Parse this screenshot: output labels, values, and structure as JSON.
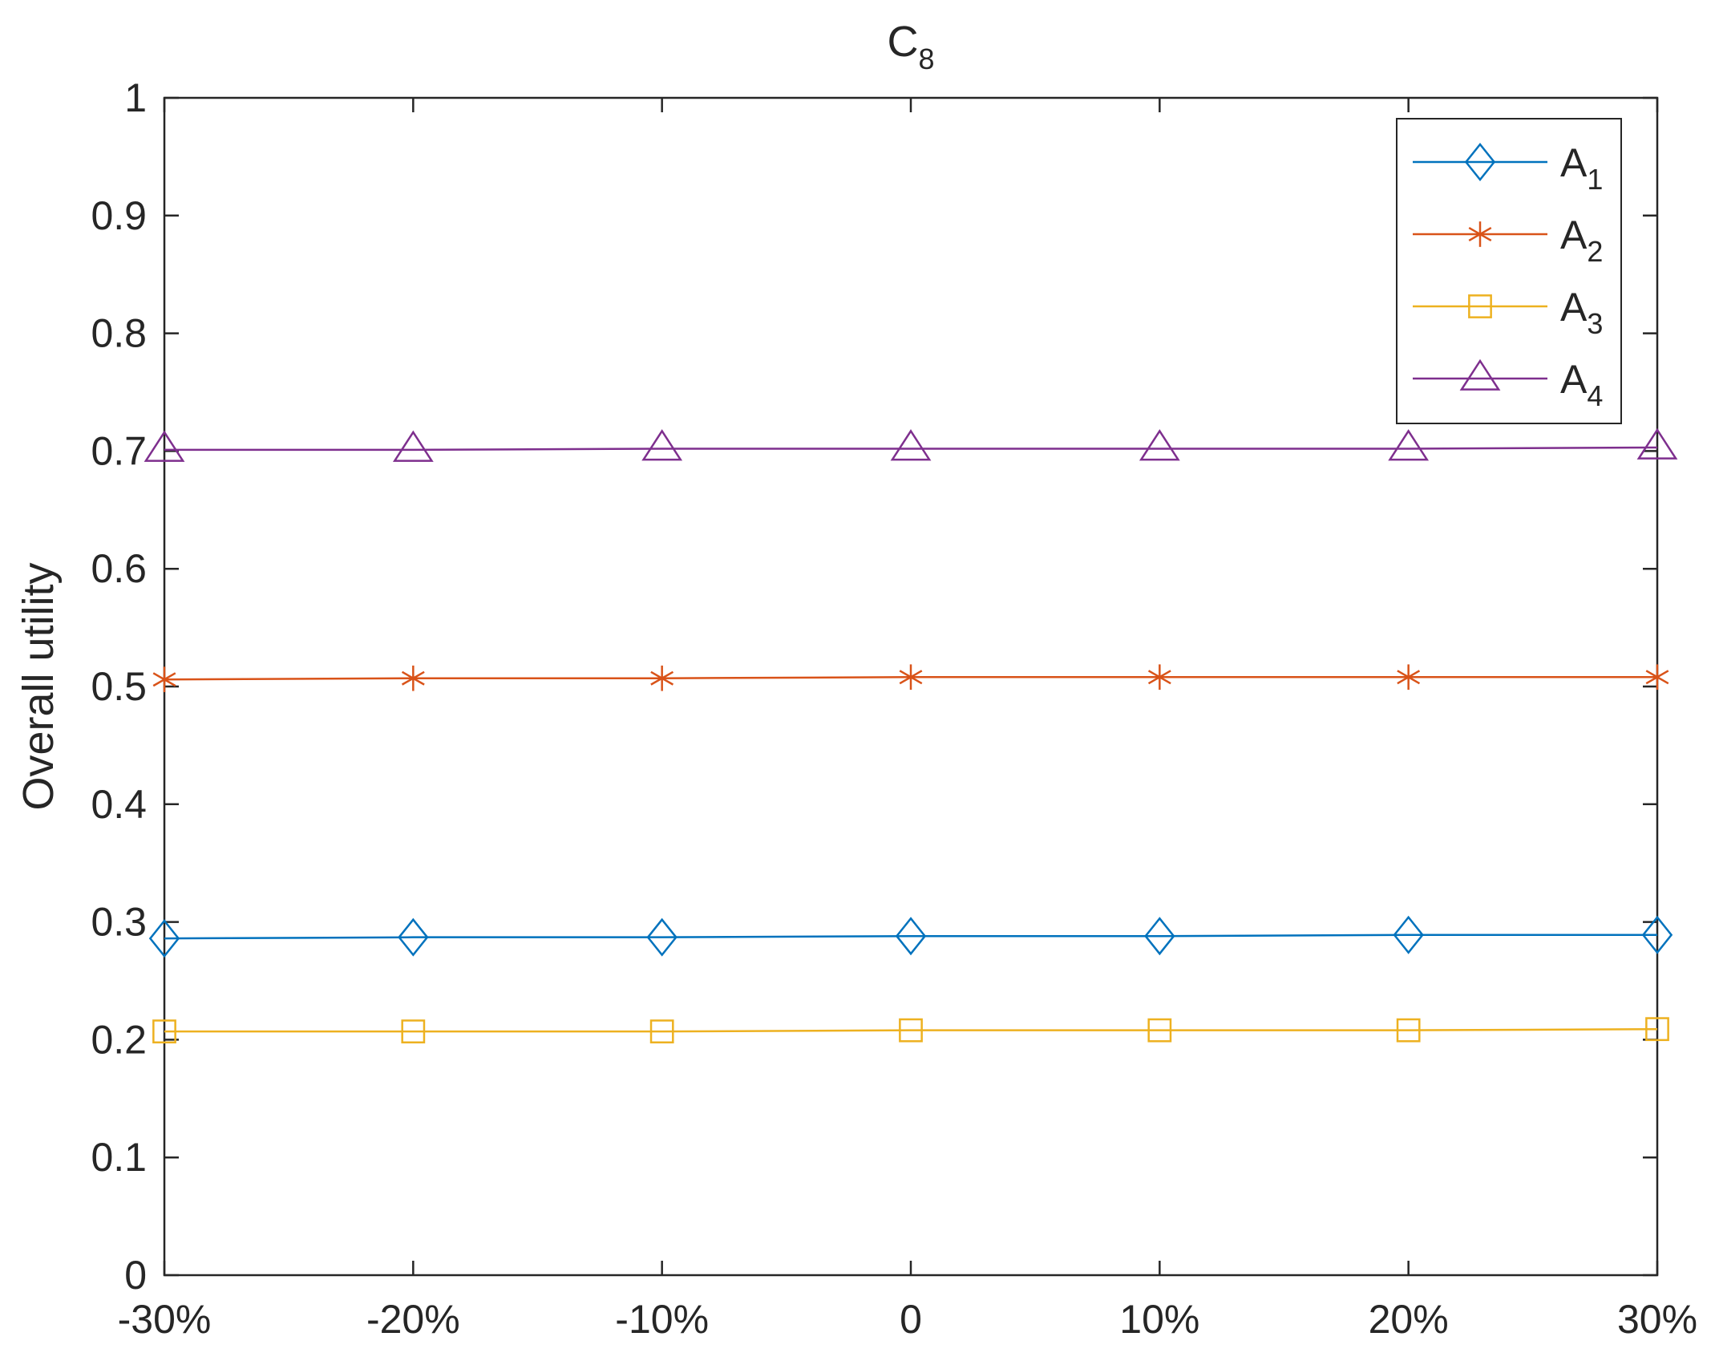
{
  "chart_data": {
    "type": "line",
    "title": "C",
    "title_subscript": "8",
    "xlabel": "",
    "ylabel": "Overall utility",
    "categories": [
      "-30%",
      "-20%",
      "-10%",
      "0",
      "10%",
      "20%",
      "30%"
    ],
    "yticks": [
      "0",
      "0.1",
      "0.2",
      "0.3",
      "0.4",
      "0.5",
      "0.6",
      "0.7",
      "0.8",
      "0.9",
      "1"
    ],
    "ylim": [
      0,
      1
    ],
    "legend_position": "top-right",
    "series": [
      {
        "name": "A",
        "subscript": "1",
        "marker": "diamond",
        "color": "#0072BD",
        "values": [
          0.286,
          0.287,
          0.287,
          0.288,
          0.288,
          0.289,
          0.289
        ]
      },
      {
        "name": "A",
        "subscript": "2",
        "marker": "asterisk",
        "color": "#D95319",
        "values": [
          0.506,
          0.507,
          0.507,
          0.508,
          0.508,
          0.508,
          0.508
        ]
      },
      {
        "name": "A",
        "subscript": "3",
        "marker": "square",
        "color": "#EDB120",
        "values": [
          0.207,
          0.207,
          0.207,
          0.208,
          0.208,
          0.208,
          0.209
        ]
      },
      {
        "name": "A",
        "subscript": "4",
        "marker": "triangle",
        "color": "#7E2F8E",
        "values": [
          0.701,
          0.701,
          0.702,
          0.702,
          0.702,
          0.702,
          0.703
        ]
      }
    ]
  }
}
